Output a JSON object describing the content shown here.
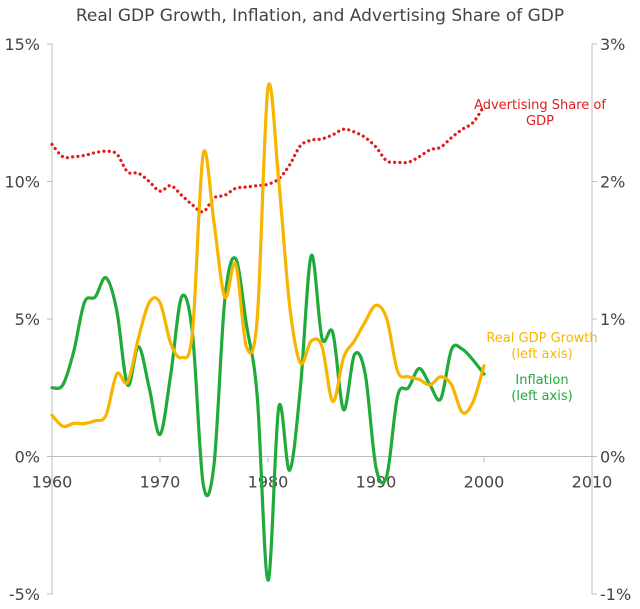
{
  "chart_data": {
    "type": "line",
    "title": "Real GDP Growth, Inflation, and Advertising Share of GDP",
    "x_ticks": [
      1960,
      1970,
      1980,
      1990,
      2000,
      2010
    ],
    "xlim": [
      1960,
      2010
    ],
    "ylim_left": [
      -5,
      15
    ],
    "ylim_right": [
      -1,
      3
    ],
    "left_tick_labels": [
      "15%",
      "10%",
      "5%",
      "0%",
      "-5%"
    ],
    "left_tick_values": [
      15,
      10,
      5,
      0,
      -5
    ],
    "right_tick_labels": [
      "3%",
      "2%",
      "1%",
      "0%",
      "-1%"
    ],
    "right_tick_values": [
      3,
      2,
      1,
      0,
      -1
    ],
    "grid": false,
    "series": [
      {
        "name": "Real GDP Growth\n(left axis)",
        "axis": "left",
        "color": "#F7B500",
        "style": "solid",
        "x": [
          1960,
          1961,
          1962,
          1963,
          1964,
          1965,
          1966,
          1967,
          1968,
          1969,
          1970,
          1971,
          1972,
          1973,
          1974,
          1975,
          1976,
          1977,
          1978,
          1979,
          1980,
          1981,
          1982,
          1983,
          1984,
          1985,
          1986,
          1987,
          1988,
          1989,
          1990,
          1991,
          1992,
          1993,
          1994,
          1995,
          1996,
          1997,
          1998,
          1999,
          2000
        ],
        "values": [
          1.5,
          1.1,
          1.2,
          1.2,
          1.3,
          1.5,
          3.0,
          2.7,
          4.3,
          5.6,
          5.6,
          4.1,
          3.6,
          4.5,
          11.0,
          8.5,
          5.8,
          7.0,
          4.0,
          5.0,
          13.4,
          10.0,
          5.5,
          3.4,
          4.2,
          4.0,
          2.0,
          3.6,
          4.2,
          4.9,
          5.5,
          5.0,
          3.1,
          2.9,
          2.8,
          2.6,
          2.9,
          2.6,
          1.6,
          2.0,
          3.3
        ]
      },
      {
        "name": "Inflation\n(left axis)",
        "axis": "left",
        "color": "#1FAA3A",
        "style": "solid",
        "x": [
          1960,
          1961,
          1962,
          1963,
          1964,
          1965,
          1966,
          1967,
          1968,
          1969,
          1970,
          1971,
          1972,
          1973,
          1974,
          1975,
          1976,
          1977,
          1978,
          1979,
          1980,
          1981,
          1982,
          1983,
          1984,
          1985,
          1986,
          1987,
          1988,
          1989,
          1990,
          1991,
          1992,
          1993,
          1994,
          1995,
          1996,
          1997,
          1998,
          1999,
          2000
        ],
        "values": [
          2.5,
          2.6,
          3.8,
          5.6,
          5.8,
          6.5,
          5.3,
          2.6,
          4.0,
          2.5,
          0.8,
          3.0,
          5.8,
          4.5,
          -1.0,
          -0.3,
          5.7,
          7.2,
          4.8,
          2.2,
          -4.5,
          1.8,
          -0.5,
          2.5,
          7.3,
          4.3,
          4.5,
          1.7,
          3.7,
          3.0,
          -0.4,
          -0.7,
          2.2,
          2.5,
          3.2,
          2.6,
          2.1,
          3.9,
          3.9,
          3.5,
          3.0
        ]
      },
      {
        "name": "Advertising Share of\nGDP",
        "axis": "right",
        "color": "#E11D1D",
        "style": "dotted",
        "x": [
          1960,
          1961,
          1962,
          1963,
          1964,
          1965,
          1966,
          1967,
          1968,
          1969,
          1970,
          1971,
          1972,
          1973,
          1974,
          1975,
          1976,
          1977,
          1978,
          1979,
          1980,
          1981,
          1982,
          1983,
          1984,
          1985,
          1986,
          1987,
          1988,
          1989,
          1990,
          1991,
          1992,
          1993,
          1994,
          1995,
          1996,
          1997,
          1998,
          1999,
          2000
        ],
        "values": [
          2.27,
          2.18,
          2.18,
          2.19,
          2.21,
          2.22,
          2.2,
          2.07,
          2.06,
          2.0,
          1.93,
          1.97,
          1.9,
          1.83,
          1.78,
          1.88,
          1.9,
          1.95,
          1.96,
          1.97,
          1.98,
          2.02,
          2.12,
          2.26,
          2.3,
          2.31,
          2.34,
          2.38,
          2.36,
          2.32,
          2.25,
          2.15,
          2.14,
          2.14,
          2.18,
          2.23,
          2.25,
          2.32,
          2.38,
          2.43,
          2.55
        ]
      }
    ]
  }
}
